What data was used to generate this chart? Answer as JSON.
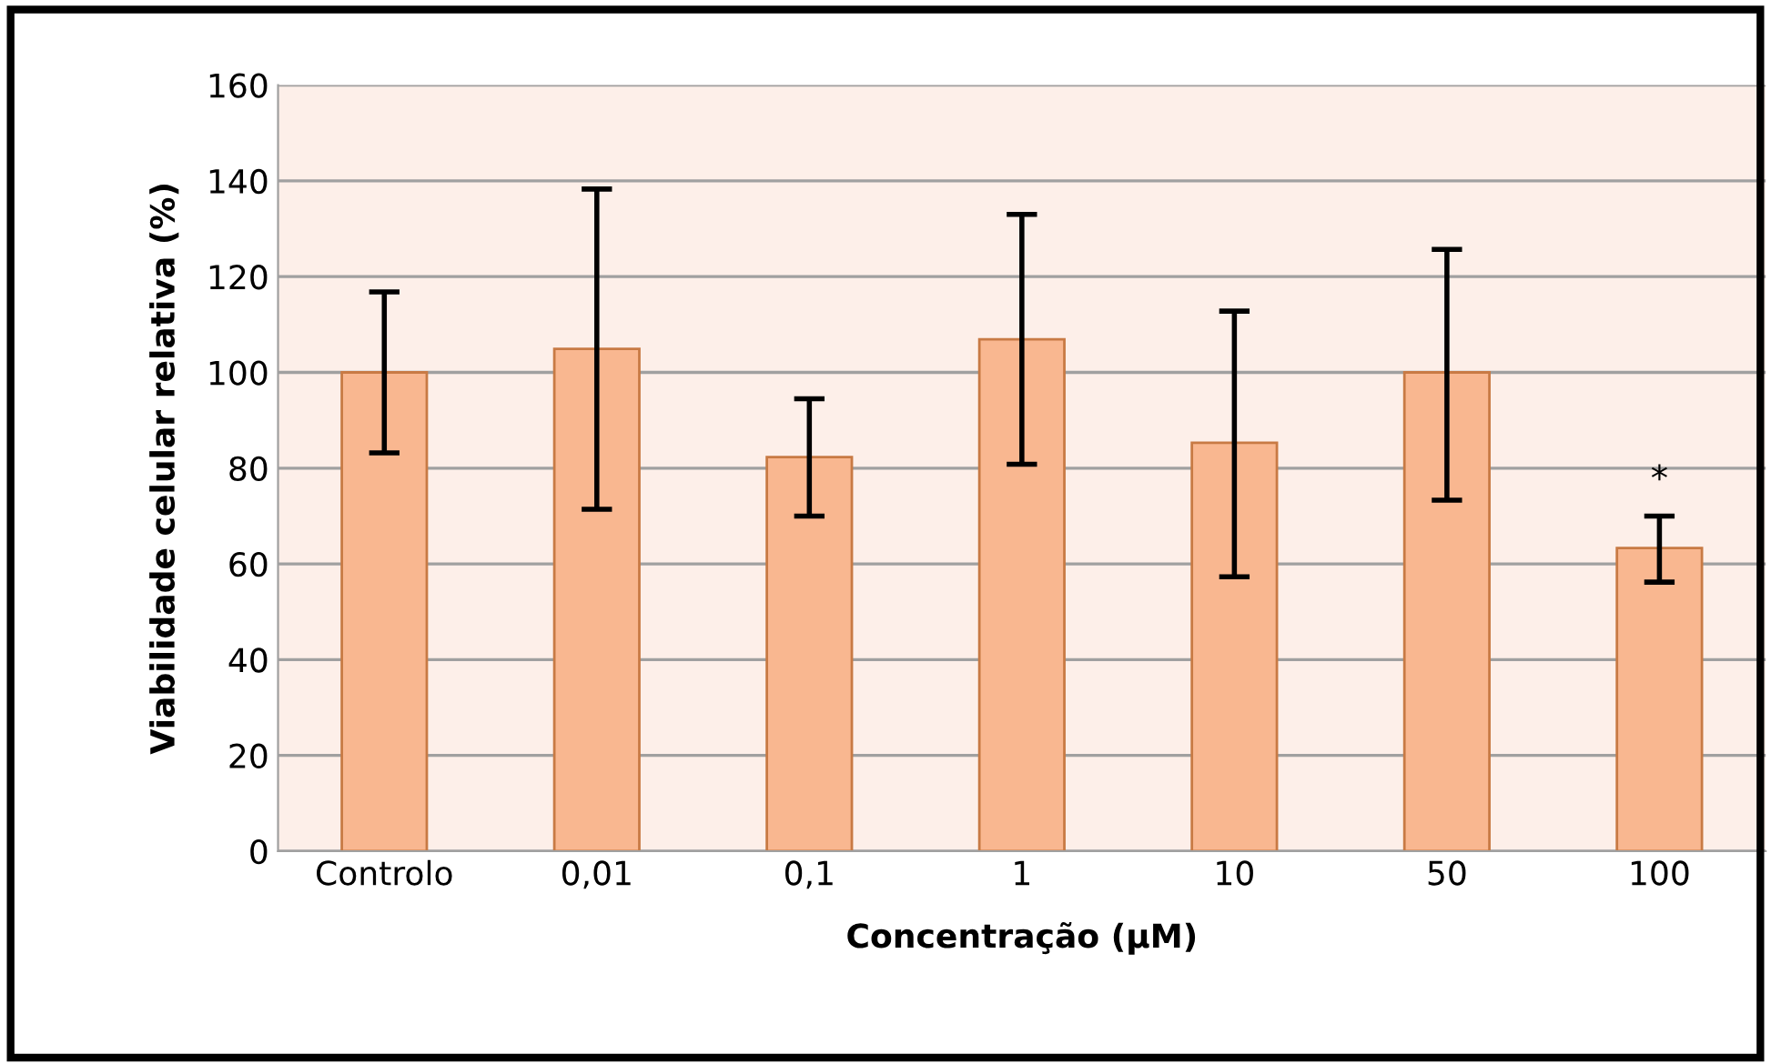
{
  "chart_data": {
    "type": "bar",
    "xlabel": "Concentração (µM)",
    "ylabel": "Viabilidade celular relativa (%)",
    "categories": [
      "Controlo",
      "0,01",
      "0,1",
      "1",
      "10",
      "50",
      "100"
    ],
    "values": [
      100,
      104.9,
      82.3,
      106.9,
      85.3,
      100,
      63.3
    ],
    "errors": [
      [
        83.2,
        116.8
      ],
      [
        71.4,
        138.3
      ],
      [
        70.0,
        94.5
      ],
      [
        80.8,
        133.0
      ],
      [
        57.3,
        112.8
      ],
      [
        73.3,
        125.7
      ],
      [
        56.2,
        70.0
      ]
    ],
    "color": "#f9b790",
    "ylim": [
      0,
      160
    ],
    "yticks": [
      0,
      20,
      40,
      60,
      80,
      100,
      120,
      140,
      160
    ],
    "grid": "y",
    "annotations": [
      "*"
    ]
  }
}
